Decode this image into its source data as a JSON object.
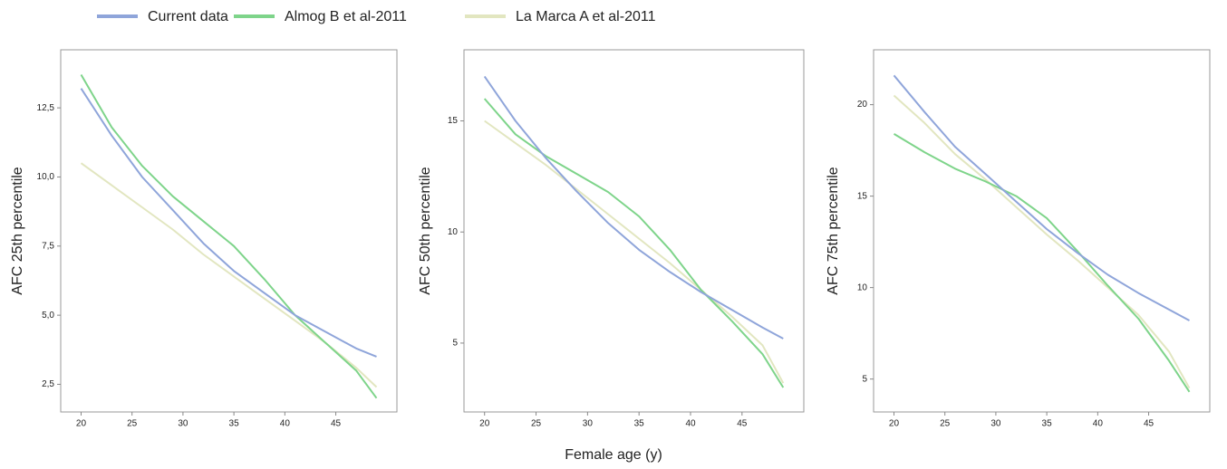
{
  "chart_data": [
    {
      "type": "line",
      "y_label": "AFC 25th percentile",
      "x": [
        20,
        23,
        26,
        29,
        32,
        35,
        38,
        41,
        44,
        47,
        49
      ],
      "xlim": [
        18,
        51
      ],
      "xticks": [
        20,
        25,
        30,
        35,
        40,
        45
      ],
      "ylim": [
        1.5,
        14.6
      ],
      "yticks": [
        {
          "value": 2.5,
          "label": "2,5"
        },
        {
          "value": 5,
          "label": "5,0"
        },
        {
          "value": 7.5,
          "label": "7,5"
        },
        {
          "value": 10,
          "label": "10,0"
        },
        {
          "value": 12.5,
          "label": "12,5"
        }
      ],
      "series": [
        {
          "name": "Current data",
          "color": "#8fa5da",
          "values": [
            13.2,
            11.5,
            10.0,
            8.8,
            7.6,
            6.6,
            5.8,
            5.0,
            4.4,
            3.8,
            3.5
          ]
        },
        {
          "name": "Almog B et al-2011",
          "color": "#7ed48a",
          "values": [
            13.7,
            11.8,
            10.4,
            9.3,
            8.4,
            7.5,
            6.3,
            5.0,
            4.0,
            3.0,
            2.0
          ]
        },
        {
          "name": "La Marca A et al-2011",
          "color": "#e2e6c0",
          "values": [
            10.5,
            9.7,
            8.9,
            8.1,
            7.2,
            6.4,
            5.6,
            4.8,
            4.0,
            3.1,
            2.4
          ]
        }
      ]
    },
    {
      "type": "line",
      "y_label": "AFC 50th percentile",
      "x_label": "Female age (y)",
      "x": [
        20,
        23,
        26,
        29,
        32,
        35,
        38,
        41,
        44,
        47,
        49
      ],
      "xlim": [
        18,
        51
      ],
      "xticks": [
        20,
        25,
        30,
        35,
        40,
        45
      ],
      "ylim": [
        1.9,
        18.2
      ],
      "yticks": [
        5,
        10,
        15
      ],
      "series": [
        {
          "color": "#8fa5da",
          "values": [
            17.0,
            15.0,
            13.3,
            11.8,
            10.4,
            9.2,
            8.2,
            7.3,
            6.5,
            5.7,
            5.2
          ]
        },
        {
          "color": "#7ed48a",
          "values": [
            16.0,
            14.4,
            13.4,
            12.6,
            11.8,
            10.7,
            9.2,
            7.4,
            6.0,
            4.5,
            3.0
          ]
        },
        {
          "color": "#e2e6c0",
          "values": [
            15.0,
            14.0,
            13.0,
            11.9,
            10.8,
            9.7,
            8.6,
            7.4,
            6.2,
            4.9,
            3.2
          ]
        }
      ]
    },
    {
      "type": "line",
      "y_label": "AFC 75th percentile",
      "x": [
        20,
        23,
        26,
        29,
        32,
        35,
        38,
        41,
        44,
        47,
        49
      ],
      "xlim": [
        18,
        51
      ],
      "xticks": [
        20,
        25,
        30,
        35,
        40,
        45
      ],
      "ylim": [
        3.2,
        23
      ],
      "yticks": [
        5,
        10,
        15,
        20
      ],
      "series": [
        {
          "color": "#8fa5da",
          "values": [
            21.6,
            19.6,
            17.7,
            16.2,
            14.7,
            13.2,
            11.9,
            10.7,
            9.7,
            8.8,
            8.2
          ]
        },
        {
          "color": "#7ed48a",
          "values": [
            18.4,
            17.4,
            16.5,
            15.8,
            15.0,
            13.8,
            12.0,
            10.1,
            8.3,
            6.0,
            4.3
          ]
        },
        {
          "color": "#e2e6c0",
          "values": [
            20.5,
            19.0,
            17.3,
            15.9,
            14.4,
            12.9,
            11.5,
            10.0,
            8.5,
            6.5,
            4.5
          ]
        }
      ]
    }
  ]
}
